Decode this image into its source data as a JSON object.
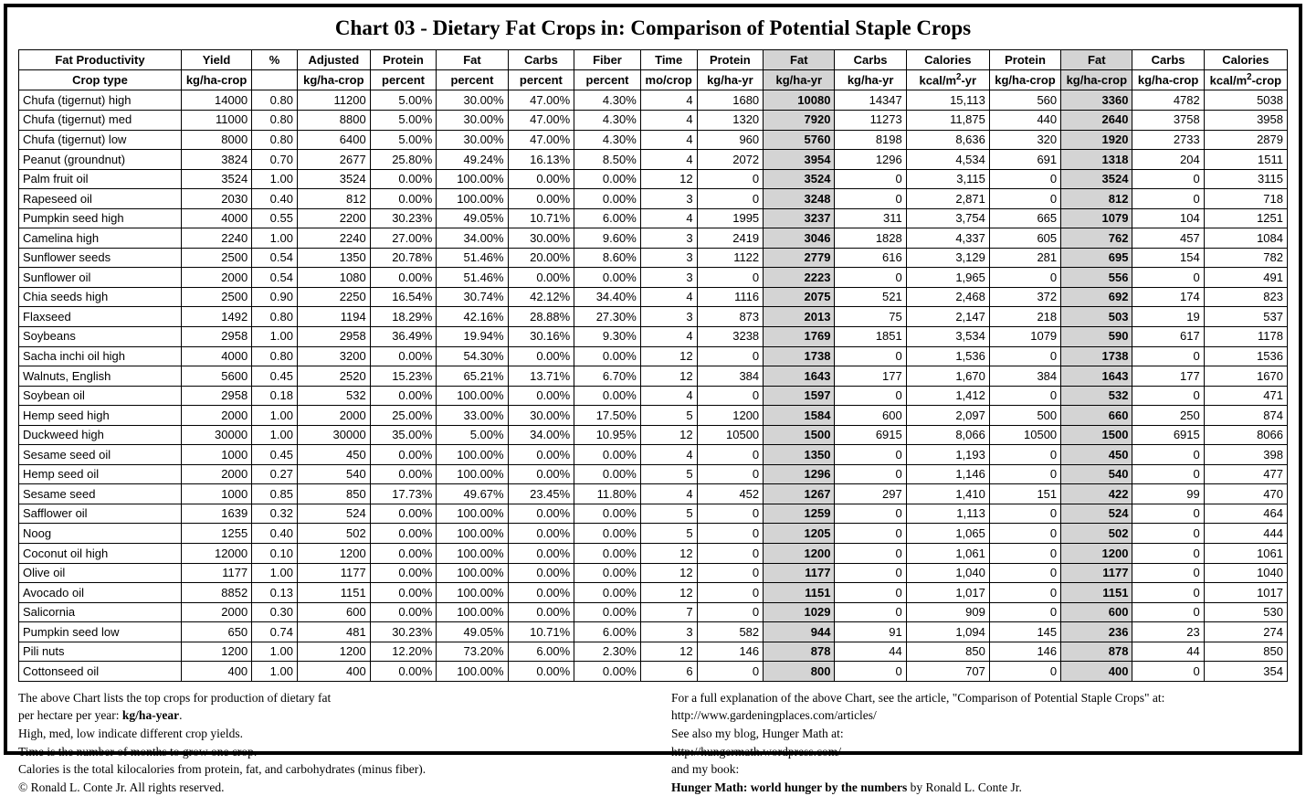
{
  "title": "Chart 03 - Dietary Fat Crops in: Comparison of Potential Staple Crops",
  "headers_row1": [
    "Fat Productivity",
    "Yield",
    "%",
    "Adjusted",
    "Protein",
    "Fat",
    "Carbs",
    "Fiber",
    "Time",
    "Protein",
    "Fat",
    "Carbs",
    "Calories",
    "Protein",
    "Fat",
    "Carbs",
    "Calories"
  ],
  "headers_row2": [
    "Crop type",
    "kg/ha-crop",
    "",
    "kg/ha-crop",
    "percent",
    "percent",
    "percent",
    "percent",
    "mo/crop",
    "kg/ha-yr",
    "kg/ha-yr",
    "kg/ha-yr",
    "kcal/m²-yr",
    "kg/ha-crop",
    "kg/ha-crop",
    "kg/ha-crop",
    "kcal/m²-crop"
  ],
  "highlight_cols": [
    10,
    14
  ],
  "rows": [
    [
      "Chufa (tigernut) high",
      "14000",
      "0.80",
      "11200",
      "5.00%",
      "30.00%",
      "47.00%",
      "4.30%",
      "4",
      "1680",
      "10080",
      "14347",
      "15,113",
      "560",
      "3360",
      "4782",
      "5038"
    ],
    [
      "Chufa (tigernut) med",
      "11000",
      "0.80",
      "8800",
      "5.00%",
      "30.00%",
      "47.00%",
      "4.30%",
      "4",
      "1320",
      "7920",
      "11273",
      "11,875",
      "440",
      "2640",
      "3758",
      "3958"
    ],
    [
      "Chufa (tigernut) low",
      "8000",
      "0.80",
      "6400",
      "5.00%",
      "30.00%",
      "47.00%",
      "4.30%",
      "4",
      "960",
      "5760",
      "8198",
      "8,636",
      "320",
      "1920",
      "2733",
      "2879"
    ],
    [
      "Peanut (groundnut)",
      "3824",
      "0.70",
      "2677",
      "25.80%",
      "49.24%",
      "16.13%",
      "8.50%",
      "4",
      "2072",
      "3954",
      "1296",
      "4,534",
      "691",
      "1318",
      "204",
      "1511"
    ],
    [
      "Palm fruit oil",
      "3524",
      "1.00",
      "3524",
      "0.00%",
      "100.00%",
      "0.00%",
      "0.00%",
      "12",
      "0",
      "3524",
      "0",
      "3,115",
      "0",
      "3524",
      "0",
      "3115"
    ],
    [
      "Rapeseed oil",
      "2030",
      "0.40",
      "812",
      "0.00%",
      "100.00%",
      "0.00%",
      "0.00%",
      "3",
      "0",
      "3248",
      "0",
      "2,871",
      "0",
      "812",
      "0",
      "718"
    ],
    [
      "Pumpkin seed high",
      "4000",
      "0.55",
      "2200",
      "30.23%",
      "49.05%",
      "10.71%",
      "6.00%",
      "4",
      "1995",
      "3237",
      "311",
      "3,754",
      "665",
      "1079",
      "104",
      "1251"
    ],
    [
      "Camelina high",
      "2240",
      "1.00",
      "2240",
      "27.00%",
      "34.00%",
      "30.00%",
      "9.60%",
      "3",
      "2419",
      "3046",
      "1828",
      "4,337",
      "605",
      "762",
      "457",
      "1084"
    ],
    [
      "Sunflower seeds",
      "2500",
      "0.54",
      "1350",
      "20.78%",
      "51.46%",
      "20.00%",
      "8.60%",
      "3",
      "1122",
      "2779",
      "616",
      "3,129",
      "281",
      "695",
      "154",
      "782"
    ],
    [
      "Sunflower oil",
      "2000",
      "0.54",
      "1080",
      "0.00%",
      "51.46%",
      "0.00%",
      "0.00%",
      "3",
      "0",
      "2223",
      "0",
      "1,965",
      "0",
      "556",
      "0",
      "491"
    ],
    [
      "Chia seeds high",
      "2500",
      "0.90",
      "2250",
      "16.54%",
      "30.74%",
      "42.12%",
      "34.40%",
      "4",
      "1116",
      "2075",
      "521",
      "2,468",
      "372",
      "692",
      "174",
      "823"
    ],
    [
      "Flaxseed",
      "1492",
      "0.80",
      "1194",
      "18.29%",
      "42.16%",
      "28.88%",
      "27.30%",
      "3",
      "873",
      "2013",
      "75",
      "2,147",
      "218",
      "503",
      "19",
      "537"
    ],
    [
      "Soybeans",
      "2958",
      "1.00",
      "2958",
      "36.49%",
      "19.94%",
      "30.16%",
      "9.30%",
      "4",
      "3238",
      "1769",
      "1851",
      "3,534",
      "1079",
      "590",
      "617",
      "1178"
    ],
    [
      "Sacha inchi oil high",
      "4000",
      "0.80",
      "3200",
      "0.00%",
      "54.30%",
      "0.00%",
      "0.00%",
      "12",
      "0",
      "1738",
      "0",
      "1,536",
      "0",
      "1738",
      "0",
      "1536"
    ],
    [
      "Walnuts, English",
      "5600",
      "0.45",
      "2520",
      "15.23%",
      "65.21%",
      "13.71%",
      "6.70%",
      "12",
      "384",
      "1643",
      "177",
      "1,670",
      "384",
      "1643",
      "177",
      "1670"
    ],
    [
      "Soybean oil",
      "2958",
      "0.18",
      "532",
      "0.00%",
      "100.00%",
      "0.00%",
      "0.00%",
      "4",
      "0",
      "1597",
      "0",
      "1,412",
      "0",
      "532",
      "0",
      "471"
    ],
    [
      "Hemp seed high",
      "2000",
      "1.00",
      "2000",
      "25.00%",
      "33.00%",
      "30.00%",
      "17.50%",
      "5",
      "1200",
      "1584",
      "600",
      "2,097",
      "500",
      "660",
      "250",
      "874"
    ],
    [
      "Duckweed high",
      "30000",
      "1.00",
      "30000",
      "35.00%",
      "5.00%",
      "34.00%",
      "10.95%",
      "12",
      "10500",
      "1500",
      "6915",
      "8,066",
      "10500",
      "1500",
      "6915",
      "8066"
    ],
    [
      "Sesame seed oil",
      "1000",
      "0.45",
      "450",
      "0.00%",
      "100.00%",
      "0.00%",
      "0.00%",
      "4",
      "0",
      "1350",
      "0",
      "1,193",
      "0",
      "450",
      "0",
      "398"
    ],
    [
      "Hemp seed oil",
      "2000",
      "0.27",
      "540",
      "0.00%",
      "100.00%",
      "0.00%",
      "0.00%",
      "5",
      "0",
      "1296",
      "0",
      "1,146",
      "0",
      "540",
      "0",
      "477"
    ],
    [
      "Sesame seed",
      "1000",
      "0.85",
      "850",
      "17.73%",
      "49.67%",
      "23.45%",
      "11.80%",
      "4",
      "452",
      "1267",
      "297",
      "1,410",
      "151",
      "422",
      "99",
      "470"
    ],
    [
      "Safflower oil",
      "1639",
      "0.32",
      "524",
      "0.00%",
      "100.00%",
      "0.00%",
      "0.00%",
      "5",
      "0",
      "1259",
      "0",
      "1,113",
      "0",
      "524",
      "0",
      "464"
    ],
    [
      "Noog",
      "1255",
      "0.40",
      "502",
      "0.00%",
      "100.00%",
      "0.00%",
      "0.00%",
      "5",
      "0",
      "1205",
      "0",
      "1,065",
      "0",
      "502",
      "0",
      "444"
    ],
    [
      "Coconut oil high",
      "12000",
      "0.10",
      "1200",
      "0.00%",
      "100.00%",
      "0.00%",
      "0.00%",
      "12",
      "0",
      "1200",
      "0",
      "1,061",
      "0",
      "1200",
      "0",
      "1061"
    ],
    [
      "Olive oil",
      "1177",
      "1.00",
      "1177",
      "0.00%",
      "100.00%",
      "0.00%",
      "0.00%",
      "12",
      "0",
      "1177",
      "0",
      "1,040",
      "0",
      "1177",
      "0",
      "1040"
    ],
    [
      "Avocado oil",
      "8852",
      "0.13",
      "1151",
      "0.00%",
      "100.00%",
      "0.00%",
      "0.00%",
      "12",
      "0",
      "1151",
      "0",
      "1,017",
      "0",
      "1151",
      "0",
      "1017"
    ],
    [
      "Salicornia",
      "2000",
      "0.30",
      "600",
      "0.00%",
      "100.00%",
      "0.00%",
      "0.00%",
      "7",
      "0",
      "1029",
      "0",
      "909",
      "0",
      "600",
      "0",
      "530"
    ],
    [
      "Pumpkin seed low",
      "650",
      "0.74",
      "481",
      "30.23%",
      "49.05%",
      "10.71%",
      "6.00%",
      "3",
      "582",
      "944",
      "91",
      "1,094",
      "145",
      "236",
      "23",
      "274"
    ],
    [
      "Pili nuts",
      "1200",
      "1.00",
      "1200",
      "12.20%",
      "73.20%",
      "6.00%",
      "2.30%",
      "12",
      "146",
      "878",
      "44",
      "850",
      "146",
      "878",
      "44",
      "850"
    ],
    [
      "Cottonseed oil",
      "400",
      "1.00",
      "400",
      "0.00%",
      "100.00%",
      "0.00%",
      "0.00%",
      "6",
      "0",
      "800",
      "0",
      "707",
      "0",
      "400",
      "0",
      "354"
    ]
  ],
  "footer_left": [
    "The above Chart lists the top crops for production of dietary fat",
    "per hectare per year: <b>kg/ha-year</b>.",
    "High, med, low indicate different crop yields.",
    "Time is the number of months to grow one crop.",
    "Calories is the total kilocalories from protein, fat, and carbohydrates (minus fiber).",
    "© Ronald L. Conte Jr. All rights reserved."
  ],
  "footer_right": [
    "For a full explanation of the above Chart, see the article, \"Comparison of Potential Staple Crops\" at:",
    "http://www.gardeningplaces.com/articles/",
    "See also my blog, Hunger Math at:",
    "http://hungermath.wordpress.com/",
    "and my book:",
    "<b>Hunger Math: world hunger by the numbers</b> by Ronald L. Conte Jr."
  ],
  "col_widths_pct": [
    12.5,
    5,
    3.5,
    5.6,
    5.1,
    5.5,
    5.1,
    5.1,
    4.3,
    5.1,
    5.5,
    5.5,
    6.4,
    5.5,
    5.5,
    5.5,
    6.4
  ]
}
